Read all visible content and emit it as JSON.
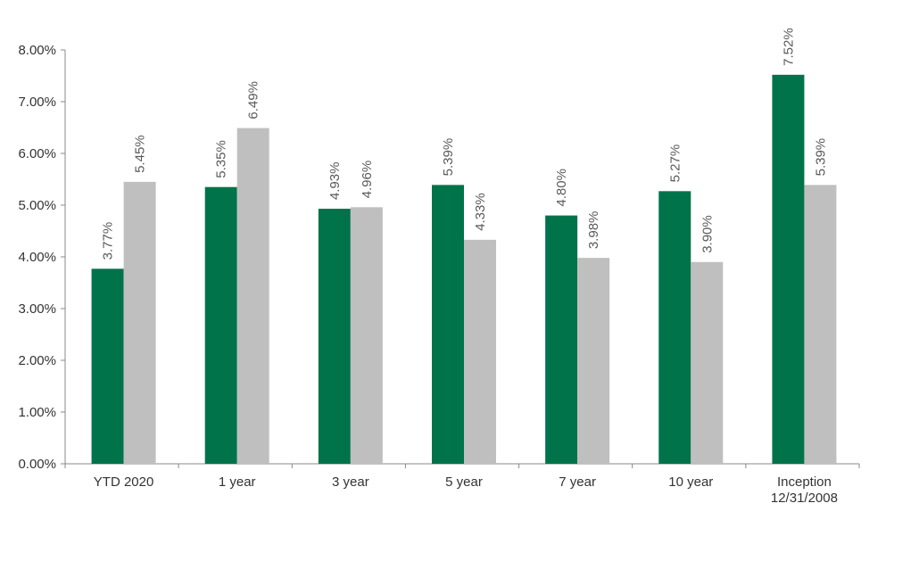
{
  "chart_data": {
    "type": "bar",
    "categories": [
      "YTD 2020",
      "1 year",
      "3 year",
      "5 year",
      "7 year",
      "10 year",
      "Inception\n12/31/2008"
    ],
    "series": [
      {
        "color": "#00734a",
        "values": [
          3.77,
          5.35,
          4.93,
          5.39,
          4.8,
          5.27,
          7.52
        ],
        "value_labels": [
          "3.77%",
          "5.35%",
          "4.93%",
          "5.39%",
          "4.80%",
          "5.27%",
          "7.52%"
        ]
      },
      {
        "color": "#bfbfbf",
        "values": [
          5.45,
          6.49,
          4.96,
          4.33,
          3.98,
          3.9,
          5.39
        ],
        "value_labels": [
          "5.45%",
          "6.49%",
          "4.96%",
          "4.33%",
          "3.98%",
          "3.90%",
          "5.39%"
        ]
      }
    ],
    "ylim": [
      0,
      8
    ],
    "yticks": [
      {
        "value": 0,
        "label": "0.00%"
      },
      {
        "value": 1,
        "label": "1.00%"
      },
      {
        "value": 2,
        "label": "2.00%"
      },
      {
        "value": 3,
        "label": "3.00%"
      },
      {
        "value": 4,
        "label": "4.00%"
      },
      {
        "value": 5,
        "label": "5.00%"
      },
      {
        "value": 6,
        "label": "6.00%"
      },
      {
        "value": 7,
        "label": "7.00%"
      },
      {
        "value": 8,
        "label": "8.00%"
      }
    ],
    "grid": false
  }
}
